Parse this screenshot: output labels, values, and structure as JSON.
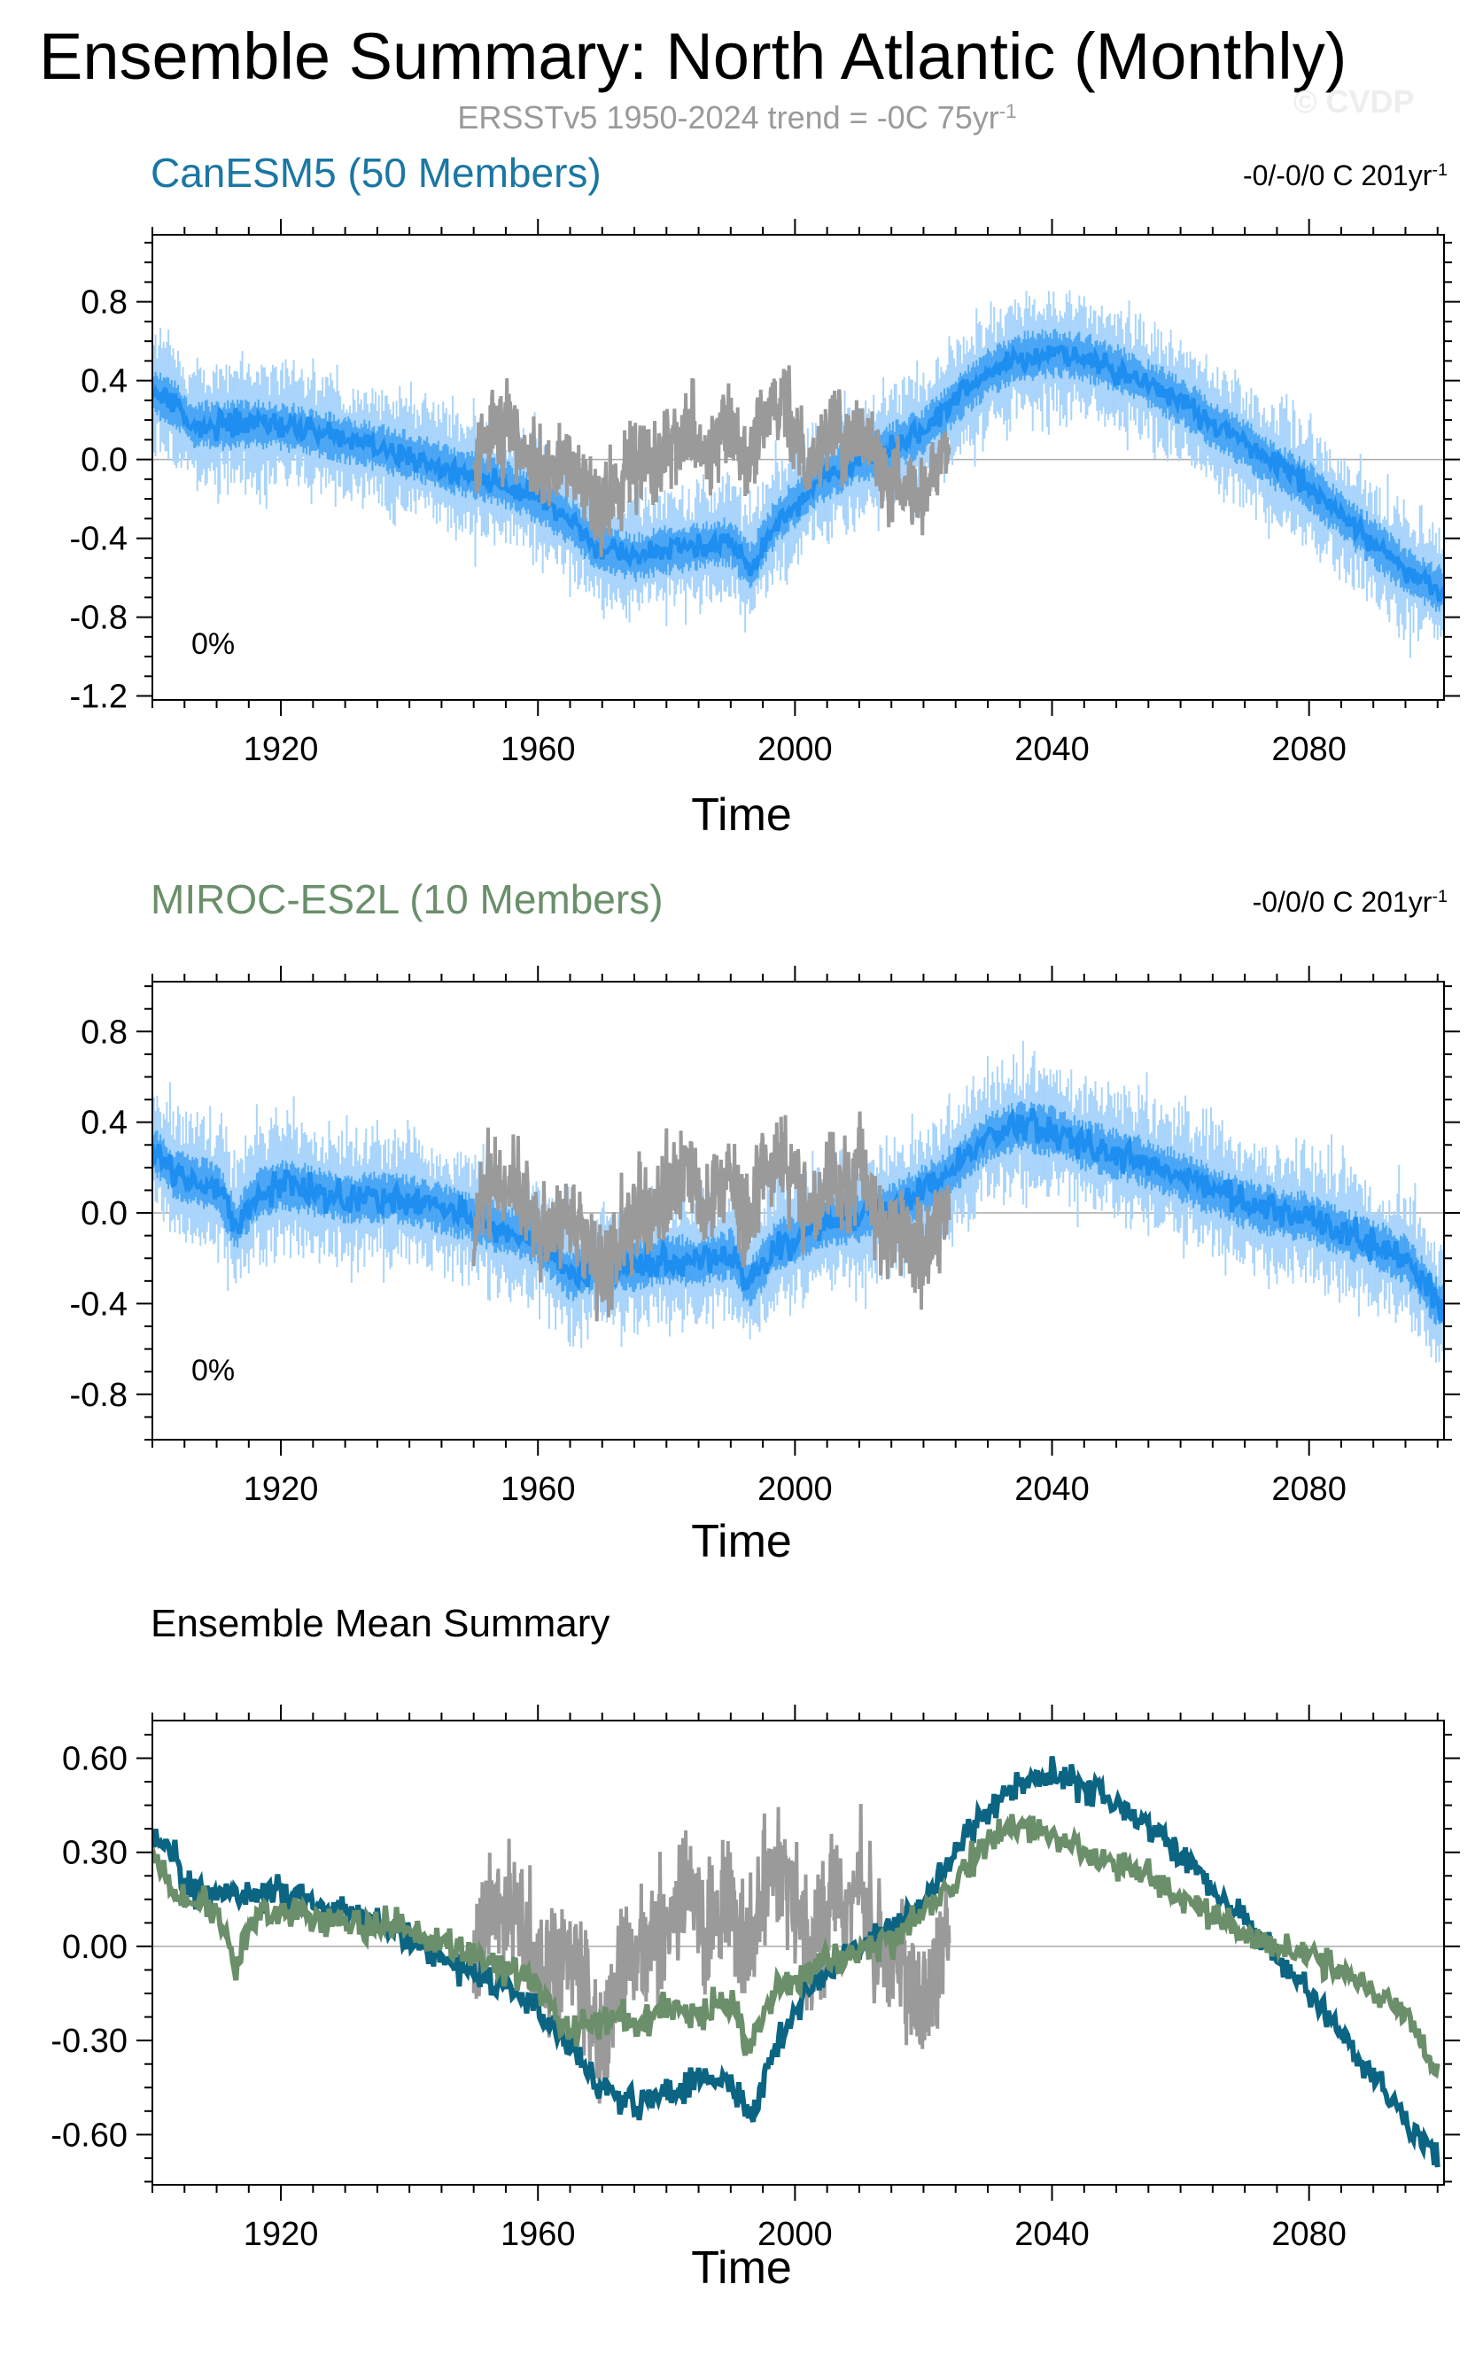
{
  "header": {
    "title": "Ensemble Summary: North Atlantic (Monthly)",
    "subtitle_prefix": "ERSSTv5 1950-2024 trend = -0C 75yr",
    "subtitle_sup": "-1",
    "watermark": "© CVDP"
  },
  "colors": {
    "canesm5_mean": "#1e8ef0",
    "canesm5_band_inner": "#4aa6f5",
    "canesm5_band_outer": "#a9d4fb",
    "observations": "#9a9a9a",
    "canesm5_summary": "#0b6482",
    "miroc_summary": "#6a8f6a",
    "canesm5_title": "#1a77a3",
    "miroc_title": "#6a8f6a",
    "zero_line": "#aaaaaa"
  },
  "chart_data": [
    {
      "type": "line",
      "panel": "canesm5",
      "title": "CanESM5 (50 Members)",
      "right_label_prefix": "-0/-0/0 C 201yr",
      "right_label_sup": "-1",
      "annotation": "0%",
      "xlabel": "Time",
      "ylabel": "",
      "xlim": [
        1900,
        2101
      ],
      "ylim": [
        -1.22,
        1.14
      ],
      "x_ticks": [
        1920,
        1960,
        2000,
        2040,
        2080
      ],
      "y_ticks": [
        0.8,
        0.4,
        0.0,
        -0.4,
        -0.8,
        -1.2
      ],
      "y_tick_labels": [
        "0.8",
        "0.4",
        "0.0",
        "-0.4",
        "-0.8",
        "-1.2"
      ],
      "series": [
        {
          "name": "CanESM5 ensemble mean",
          "x": [
            1900,
            1903,
            1906,
            1910,
            1915,
            1920,
            1925,
            1930,
            1935,
            1940,
            1945,
            1950,
            1955,
            1960,
            1965,
            1970,
            1975,
            1980,
            1985,
            1990,
            1993,
            1997,
            2000,
            2005,
            2010,
            2015,
            2020,
            2025,
            2030,
            2035,
            2040,
            2045,
            2050,
            2055,
            2060,
            2065,
            2070,
            2075,
            2080,
            2085,
            2090,
            2095,
            2100
          ],
          "values": [
            0.34,
            0.3,
            0.18,
            0.17,
            0.18,
            0.17,
            0.14,
            0.1,
            0.06,
            0.02,
            -0.04,
            -0.08,
            -0.13,
            -0.2,
            -0.32,
            -0.46,
            -0.5,
            -0.46,
            -0.44,
            -0.42,
            -0.55,
            -0.32,
            -0.22,
            -0.08,
            0.0,
            0.06,
            0.14,
            0.3,
            0.44,
            0.52,
            0.54,
            0.52,
            0.46,
            0.38,
            0.3,
            0.18,
            0.08,
            -0.04,
            -0.14,
            -0.28,
            -0.42,
            -0.56,
            -0.66
          ]
        },
        {
          "name": "ERSSTv5 observations",
          "x": [
            1950,
            1952,
            1954,
            1956,
            1958,
            1960,
            1962,
            1964,
            1966,
            1968,
            1970,
            1972,
            1974,
            1976,
            1978,
            1980,
            1982,
            1984,
            1986,
            1988,
            1990,
            1992,
            1994,
            1996,
            1998,
            2000,
            2002,
            2004,
            2006,
            2008,
            2010,
            2012,
            2014,
            2016,
            2018,
            2020,
            2022,
            2024
          ],
          "values": [
            -0.05,
            0.15,
            0.08,
            0.18,
            0.02,
            -0.02,
            -0.1,
            0.0,
            -0.08,
            -0.18,
            -0.28,
            -0.15,
            -0.05,
            0.02,
            0.0,
            0.08,
            0.15,
            0.2,
            0.02,
            0.12,
            0.18,
            -0.05,
            0.1,
            0.22,
            0.28,
            0.15,
            0.0,
            0.05,
            0.2,
            0.08,
            0.25,
            0.05,
            -0.1,
            -0.05,
            -0.12,
            -0.2,
            -0.05,
            0.1
          ]
        }
      ]
    },
    {
      "type": "line",
      "panel": "miroc",
      "title": "MIROC-ES2L (10 Members)",
      "right_label_prefix": "-0/0/0 C 201yr",
      "right_label_sup": "-1",
      "annotation": "0%",
      "xlabel": "Time",
      "ylabel": "",
      "xlim": [
        1900,
        2101
      ],
      "ylim": [
        -1.0,
        1.02
      ],
      "x_ticks": [
        1920,
        1960,
        2000,
        2040,
        2080
      ],
      "y_ticks": [
        0.8,
        0.4,
        0.0,
        -0.4,
        -0.8
      ],
      "y_tick_labels": [
        "0.8",
        "0.4",
        "0.0",
        "-0.4",
        "-0.8"
      ],
      "series": [
        {
          "name": "MIROC-ES2L ensemble mean",
          "x": [
            1900,
            1903,
            1906,
            1910,
            1913,
            1916,
            1920,
            1925,
            1930,
            1935,
            1940,
            1945,
            1950,
            1955,
            1960,
            1965,
            1970,
            1975,
            1980,
            1985,
            1990,
            1993,
            1997,
            2000,
            2005,
            2010,
            2015,
            2020,
            2025,
            2030,
            2035,
            2040,
            2045,
            2050,
            2055,
            2060,
            2065,
            2070,
            2075,
            2080,
            2085,
            2090,
            2095,
            2100
          ],
          "values": [
            0.28,
            0.18,
            0.14,
            0.12,
            -0.06,
            0.08,
            0.12,
            0.1,
            0.06,
            0.07,
            0.06,
            0.02,
            -0.02,
            -0.08,
            -0.12,
            -0.28,
            -0.22,
            -0.24,
            -0.2,
            -0.22,
            -0.18,
            -0.32,
            -0.14,
            -0.12,
            -0.04,
            -0.02,
            0.02,
            0.1,
            0.2,
            0.34,
            0.38,
            0.36,
            0.3,
            0.26,
            0.22,
            0.16,
            0.1,
            0.04,
            0.0,
            -0.02,
            -0.08,
            -0.14,
            -0.2,
            -0.4
          ]
        },
        {
          "name": "ERSSTv5 observations",
          "x": [
            1950,
            1952,
            1954,
            1956,
            1958,
            1960,
            1962,
            1964,
            1966,
            1968,
            1970,
            1972,
            1974,
            1976,
            1978,
            1980,
            1982,
            1984,
            1986,
            1988,
            1990,
            1992,
            1994,
            1996,
            1998,
            2000,
            2002,
            2004,
            2006,
            2008,
            2010,
            2012,
            2014,
            2016,
            2018,
            2020,
            2022,
            2024
          ],
          "values": [
            -0.05,
            0.15,
            0.08,
            0.18,
            0.02,
            -0.02,
            -0.1,
            0.0,
            -0.08,
            -0.18,
            -0.28,
            -0.15,
            -0.05,
            0.02,
            0.0,
            0.08,
            0.15,
            0.2,
            0.02,
            0.12,
            0.18,
            -0.05,
            0.1,
            0.22,
            0.28,
            0.15,
            0.0,
            0.05,
            0.2,
            0.08,
            0.25,
            0.05,
            -0.1,
            -0.05,
            -0.12,
            -0.2,
            -0.05,
            0.1
          ]
        }
      ]
    },
    {
      "type": "line",
      "panel": "summary",
      "title": "Ensemble Mean Summary",
      "xlabel": "Time",
      "ylabel": "",
      "xlim": [
        1900,
        2101
      ],
      "ylim": [
        -0.76,
        0.72
      ],
      "x_ticks": [
        1920,
        1960,
        2000,
        2040,
        2080
      ],
      "y_ticks": [
        0.6,
        0.3,
        0.0,
        -0.3,
        -0.6
      ],
      "y_tick_labels": [
        "0.60",
        "0.30",
        "0.00",
        "-0.30",
        "-0.60"
      ],
      "series": [
        {
          "name": "CanESM5 ensemble mean",
          "x": [
            1900,
            1903,
            1906,
            1910,
            1915,
            1920,
            1925,
            1930,
            1935,
            1940,
            1945,
            1950,
            1955,
            1960,
            1965,
            1970,
            1975,
            1980,
            1985,
            1990,
            1993,
            1997,
            2000,
            2005,
            2010,
            2015,
            2020,
            2025,
            2030,
            2035,
            2040,
            2045,
            2050,
            2055,
            2060,
            2065,
            2070,
            2075,
            2080,
            2085,
            2090,
            2095,
            2100
          ],
          "values": [
            0.34,
            0.3,
            0.18,
            0.17,
            0.18,
            0.17,
            0.14,
            0.1,
            0.06,
            0.02,
            -0.04,
            -0.08,
            -0.13,
            -0.2,
            -0.32,
            -0.46,
            -0.5,
            -0.46,
            -0.44,
            -0.42,
            -0.55,
            -0.32,
            -0.22,
            -0.08,
            0.0,
            0.06,
            0.14,
            0.3,
            0.44,
            0.52,
            0.54,
            0.52,
            0.46,
            0.38,
            0.3,
            0.18,
            0.08,
            -0.04,
            -0.14,
            -0.28,
            -0.42,
            -0.56,
            -0.66
          ]
        },
        {
          "name": "MIROC-ES2L ensemble mean",
          "x": [
            1900,
            1903,
            1906,
            1910,
            1913,
            1916,
            1920,
            1925,
            1930,
            1935,
            1940,
            1945,
            1950,
            1955,
            1960,
            1965,
            1970,
            1975,
            1980,
            1985,
            1990,
            1993,
            1997,
            2000,
            2005,
            2010,
            2015,
            2020,
            2025,
            2030,
            2035,
            2040,
            2045,
            2050,
            2055,
            2060,
            2065,
            2070,
            2075,
            2080,
            2085,
            2090,
            2095,
            2100
          ],
          "values": [
            0.28,
            0.18,
            0.14,
            0.12,
            -0.06,
            0.08,
            0.12,
            0.1,
            0.06,
            0.07,
            0.06,
            0.02,
            -0.02,
            -0.08,
            -0.12,
            -0.28,
            -0.22,
            -0.24,
            -0.2,
            -0.22,
            -0.18,
            -0.32,
            -0.14,
            -0.12,
            -0.04,
            -0.02,
            0.02,
            0.1,
            0.2,
            0.34,
            0.38,
            0.36,
            0.3,
            0.26,
            0.22,
            0.16,
            0.1,
            0.04,
            0.0,
            -0.02,
            -0.08,
            -0.14,
            -0.2,
            -0.4
          ]
        },
        {
          "name": "ERSSTv5 observations",
          "x": [
            1950,
            1952,
            1954,
            1956,
            1958,
            1960,
            1962,
            1964,
            1966,
            1968,
            1970,
            1972,
            1974,
            1976,
            1978,
            1980,
            1982,
            1984,
            1986,
            1988,
            1990,
            1992,
            1994,
            1996,
            1998,
            2000,
            2002,
            2004,
            2006,
            2008,
            2010,
            2012,
            2014,
            2016,
            2018,
            2020,
            2022,
            2024
          ],
          "values": [
            -0.05,
            0.15,
            0.08,
            0.18,
            0.02,
            -0.02,
            -0.1,
            0.0,
            -0.08,
            -0.18,
            -0.28,
            -0.15,
            -0.05,
            0.02,
            0.0,
            0.08,
            0.15,
            0.2,
            0.02,
            0.12,
            0.18,
            -0.05,
            0.1,
            0.22,
            0.28,
            0.15,
            0.0,
            0.05,
            0.2,
            0.08,
            0.25,
            0.05,
            -0.1,
            -0.05,
            -0.12,
            -0.2,
            -0.05,
            0.1
          ]
        }
      ]
    }
  ]
}
